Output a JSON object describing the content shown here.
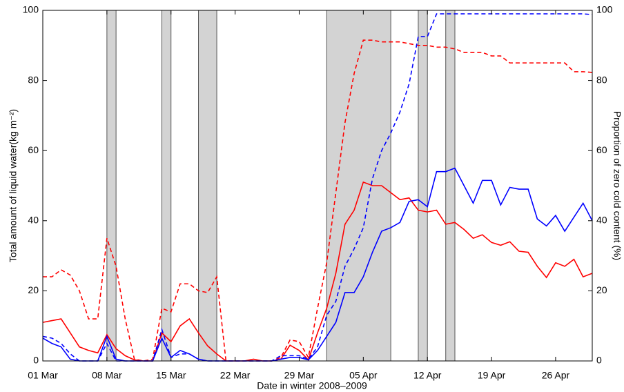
{
  "chart_data": {
    "type": "line",
    "xlabel": "Date in winter 2008–2009",
    "ylabel": "Total amount of liquid water(kg  m⁻²)",
    "y2label": "Proportion of zero cold content (%)",
    "x": [
      0,
      1,
      2,
      3,
      4,
      5,
      6,
      7,
      8,
      9,
      10,
      11,
      12,
      13,
      14,
      15,
      16,
      17,
      18,
      19,
      20,
      21,
      22,
      23,
      24,
      25,
      26,
      27,
      28,
      29,
      30,
      31,
      32,
      33,
      34,
      35,
      36,
      37,
      38,
      39,
      40,
      41,
      42,
      43,
      44,
      45,
      46,
      47,
      48,
      49,
      50,
      51,
      52,
      53,
      54,
      55,
      56,
      57,
      58,
      59,
      60
    ],
    "xlim": [
      0,
      60
    ],
    "xticks": [
      {
        "value": 0,
        "label": "01 Mar"
      },
      {
        "value": 7,
        "label": "08 Mar"
      },
      {
        "value": 14,
        "label": "15 Mar"
      },
      {
        "value": 21,
        "label": "22 Mar"
      },
      {
        "value": 28,
        "label": "29 Mar"
      },
      {
        "value": 35,
        "label": "05 Apr"
      },
      {
        "value": 42,
        "label": "12 Apr"
      },
      {
        "value": 49,
        "label": "19 Apr"
      },
      {
        "value": 56,
        "label": "26 Apr"
      }
    ],
    "ylim": [
      0,
      100
    ],
    "yticks": [
      0,
      20,
      40,
      60,
      80,
      100
    ],
    "y2lim": [
      0,
      100
    ],
    "y2ticks": [
      0,
      20,
      40,
      60,
      80,
      100
    ],
    "shaded": [
      [
        7,
        8
      ],
      [
        13,
        14
      ],
      [
        17,
        19
      ],
      [
        31,
        38
      ],
      [
        41,
        42
      ],
      [
        44,
        45
      ]
    ],
    "series": [
      {
        "color": "#ff0000",
        "linestyle": "solid",
        "axis": "y",
        "values": [
          11,
          11.5,
          12,
          8,
          4,
          3,
          2.3,
          7.5,
          3.5,
          1.5,
          0.3,
          0,
          0,
          8,
          5.5,
          10,
          12,
          8,
          4.3,
          2,
          0,
          0,
          0,
          0.5,
          0,
          0,
          0.5,
          4.5,
          3,
          0.3,
          8,
          15,
          25,
          39,
          43,
          51,
          50,
          50,
          48,
          46,
          46.5,
          43,
          42.5,
          43,
          39,
          39.5,
          37.5,
          35,
          36,
          33.8,
          33,
          34,
          31.3,
          31,
          27,
          23.8,
          28,
          27,
          29,
          24,
          25
        ]
      },
      {
        "color": "#ff0000",
        "linestyle": "dashed",
        "axis": "y2",
        "values": [
          24,
          24,
          26,
          24.5,
          20,
          12,
          12,
          35,
          27,
          12,
          0.5,
          0,
          0.5,
          15,
          14,
          22,
          22,
          20,
          19.5,
          24,
          0,
          0,
          0,
          0,
          0,
          0,
          1,
          6,
          5.5,
          1,
          15,
          28,
          48,
          68,
          82,
          91.5,
          91.5,
          91,
          91,
          91,
          90.5,
          90,
          90,
          89.5,
          89.5,
          89,
          88,
          88,
          88,
          87,
          87,
          85,
          85,
          85,
          85,
          85,
          85,
          85,
          82.5,
          82.5,
          82.3
        ]
      },
      {
        "color": "#0000ff",
        "linestyle": "solid",
        "axis": "y",
        "values": [
          6.5,
          5,
          4,
          0.5,
          0,
          0,
          0,
          7,
          0.5,
          0,
          0,
          0,
          0,
          6.5,
          1,
          3,
          2,
          0.5,
          0,
          0,
          0,
          0,
          0,
          0,
          0,
          0,
          0.5,
          1,
          1,
          0.3,
          3,
          7,
          11,
          19.5,
          19.5,
          24,
          31,
          37,
          38,
          39.5,
          45.5,
          46,
          44,
          54,
          54,
          55,
          50,
          45,
          51.5,
          51.5,
          44.5,
          49.5,
          49,
          49,
          40.5,
          38.5,
          41.5,
          37,
          41,
          45,
          40
        ]
      },
      {
        "color": "#0000ff",
        "linestyle": "dashed",
        "axis": "y2",
        "values": [
          7,
          6.5,
          5,
          2,
          0,
          0,
          0,
          5,
          0,
          0,
          0,
          0,
          0,
          9,
          1,
          2,
          2,
          0.5,
          0,
          0,
          0,
          0,
          0,
          0,
          0,
          0,
          1.5,
          1.5,
          1.5,
          0.5,
          4,
          13,
          17,
          27,
          32,
          38,
          52,
          60,
          65,
          71,
          79,
          92.5,
          92.5,
          99,
          99,
          99,
          99,
          99,
          99,
          99,
          99,
          99,
          99,
          99,
          99,
          99,
          99,
          99,
          99,
          99,
          98.8
        ]
      }
    ]
  }
}
